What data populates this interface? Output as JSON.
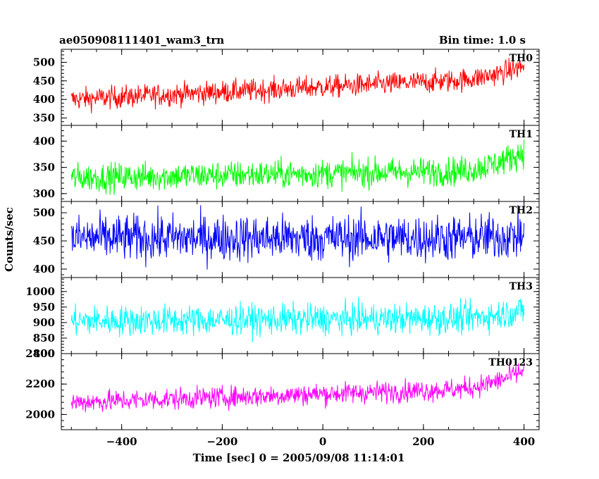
{
  "chart_data": {
    "type": "line",
    "title": "ae050908111401_wam3_trn",
    "subtitle": "Bin time: 1.0 s",
    "xlabel": "Time [sec] 0 = 2005/09/08 11:14:01",
    "ylabel": "Counts/sec",
    "xlim": [
      -520,
      430
    ],
    "xticks": [
      -400,
      -200,
      0,
      200,
      400
    ],
    "x_range": [
      -500,
      400
    ],
    "grid": false,
    "panels": [
      {
        "name": "TH0",
        "color": "#ff0000",
        "ylim": [
          330,
          535
        ],
        "yticks": [
          350,
          400,
          450,
          500
        ],
        "base_start": 400,
        "base_end": 460,
        "rise_end": 490,
        "noise": 28
      },
      {
        "name": "TH1",
        "color": "#00ff00",
        "ylim": [
          285,
          430
        ],
        "yticks": [
          300,
          350,
          400
        ],
        "base_start": 330,
        "base_end": 345,
        "rise_end": 380,
        "noise": 25
      },
      {
        "name": "TH2",
        "color": "#0000ff",
        "ylim": [
          385,
          520
        ],
        "yticks": [
          400,
          450,
          500
        ],
        "base_start": 455,
        "base_end": 455,
        "rise_end": 460,
        "noise": 38
      },
      {
        "name": "TH3",
        "color": "#00ffff",
        "ylim": [
          800,
          1045
        ],
        "yticks": [
          800,
          850,
          900,
          950,
          1000
        ],
        "base_start": 905,
        "base_end": 915,
        "rise_end": 940,
        "noise": 45
      },
      {
        "name": "TH0123",
        "color": "#ff00ff",
        "ylim": [
          1900,
          2400
        ],
        "yticks": [
          2000,
          2200,
          2400
        ],
        "base_start": 2080,
        "base_end": 2180,
        "rise_end": 2290,
        "noise": 65
      }
    ]
  }
}
